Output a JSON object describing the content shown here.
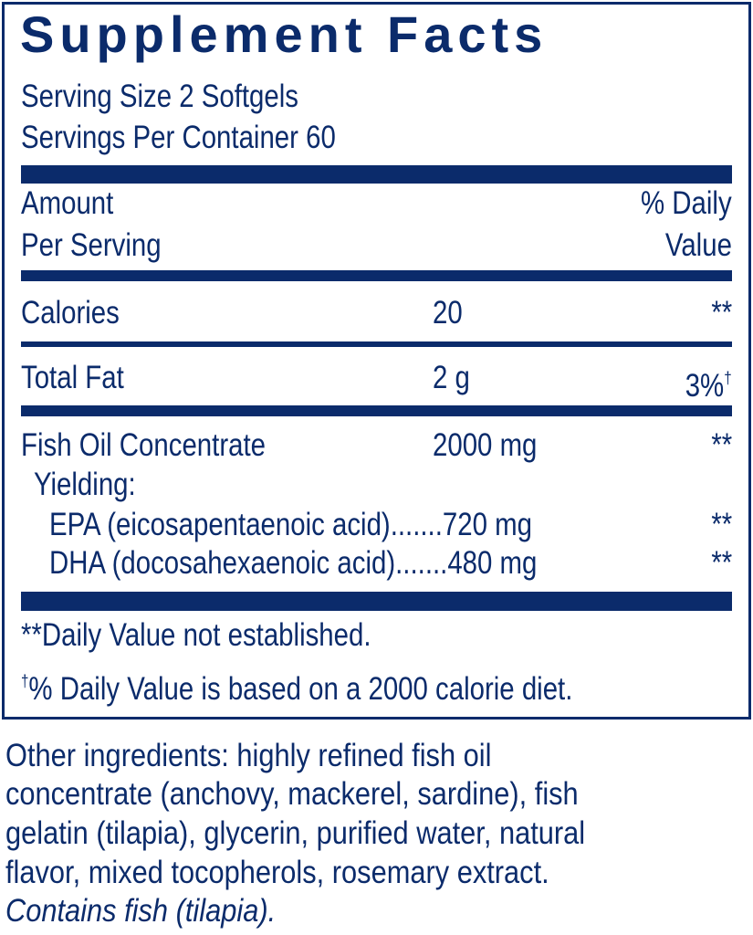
{
  "title": "Supplement Facts",
  "serving_size": "Serving Size 2 Softgels",
  "servings_per_container": "Servings Per Container 60",
  "header": {
    "amount_1": "Amount",
    "amount_2": "Per Serving",
    "dv_1": "% Daily",
    "dv_2": "Value"
  },
  "rows": [
    {
      "name": "Calories",
      "amount": "20",
      "dv": "**"
    },
    {
      "name": "Total Fat",
      "amount": "2 g",
      "dv": "3%",
      "dv_mark": "†"
    },
    {
      "name": "Fish Oil Concentrate",
      "amount": "2000 mg",
      "dv": "**"
    }
  ],
  "yielding": "Yielding:",
  "sub_rows": [
    {
      "text": "EPA (eicosapentaenoic acid).......720 mg",
      "dv": "**"
    },
    {
      "text": "DHA (docosahexaenoic acid).......480 mg",
      "dv": "**"
    }
  ],
  "footnotes": {
    "f1": "**Daily Value not established.",
    "f2_mark": "†",
    "f2": "% Daily Value is based on a 2000 calorie diet."
  },
  "other_ingredients": [
    "Other ingredients: highly refined fish oil",
    "concentrate (anchovy, mackerel, sardine), fish",
    "gelatin (tilapia), glycerin, purified water, natural",
    "flavor, mixed tocopherols, rosemary extract."
  ],
  "allergen": "Contains fish (tilapia).",
  "colors": {
    "ink": "#0b2b6b"
  }
}
